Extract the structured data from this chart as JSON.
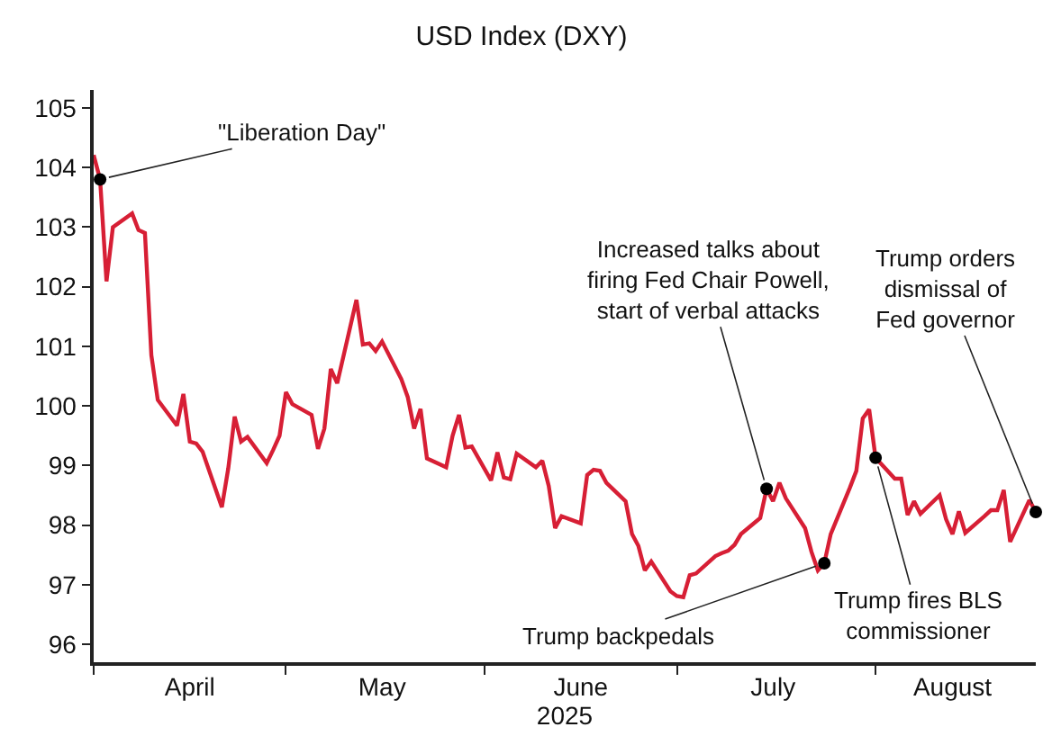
{
  "chart_data": {
    "type": "line",
    "title": "USD Index (DXY)",
    "xlabel": "2025",
    "x": [
      "2025-04-01",
      "2025-04-02",
      "2025-04-03",
      "2025-04-04",
      "2025-04-07",
      "2025-04-08",
      "2025-04-09",
      "2025-04-10",
      "2025-04-11",
      "2025-04-14",
      "2025-04-15",
      "2025-04-16",
      "2025-04-17",
      "2025-04-18",
      "2025-04-21",
      "2025-04-22",
      "2025-04-23",
      "2025-04-24",
      "2025-04-25",
      "2025-04-28",
      "2025-04-29",
      "2025-04-30",
      "2025-05-01",
      "2025-05-02",
      "2025-05-05",
      "2025-05-06",
      "2025-05-07",
      "2025-05-08",
      "2025-05-09",
      "2025-05-12",
      "2025-05-13",
      "2025-05-14",
      "2025-05-15",
      "2025-05-16",
      "2025-05-19",
      "2025-05-20",
      "2025-05-21",
      "2025-05-22",
      "2025-05-23",
      "2025-05-26",
      "2025-05-27",
      "2025-05-28",
      "2025-05-29",
      "2025-05-30",
      "2025-06-02",
      "2025-06-03",
      "2025-06-04",
      "2025-06-05",
      "2025-06-06",
      "2025-06-09",
      "2025-06-10",
      "2025-06-11",
      "2025-06-12",
      "2025-06-13",
      "2025-06-16",
      "2025-06-17",
      "2025-06-18",
      "2025-06-19",
      "2025-06-20",
      "2025-06-23",
      "2025-06-24",
      "2025-06-25",
      "2025-06-26",
      "2025-06-27",
      "2025-06-30",
      "2025-07-01",
      "2025-07-02",
      "2025-07-03",
      "2025-07-04",
      "2025-07-07",
      "2025-07-08",
      "2025-07-09",
      "2025-07-10",
      "2025-07-11",
      "2025-07-14",
      "2025-07-15",
      "2025-07-16",
      "2025-07-17",
      "2025-07-18",
      "2025-07-21",
      "2025-07-22",
      "2025-07-23",
      "2025-07-24",
      "2025-07-25",
      "2025-07-28",
      "2025-07-29",
      "2025-07-30",
      "2025-07-31",
      "2025-08-01",
      "2025-08-04",
      "2025-08-05",
      "2025-08-06",
      "2025-08-07",
      "2025-08-08",
      "2025-08-11",
      "2025-08-12",
      "2025-08-13",
      "2025-08-14",
      "2025-08-15",
      "2025-08-18",
      "2025-08-19",
      "2025-08-20",
      "2025-08-21",
      "2025-08-22",
      "2025-08-25",
      "2025-08-26"
    ],
    "series": [
      {
        "color": "#d71f35",
        "values": [
          104.21,
          103.8,
          102.09,
          103.0,
          103.23,
          102.95,
          102.9,
          100.85,
          100.1,
          99.67,
          100.2,
          99.4,
          99.37,
          99.23,
          98.3,
          98.95,
          99.82,
          99.4,
          99.48,
          99.04,
          99.26,
          99.5,
          100.23,
          100.03,
          99.85,
          99.28,
          99.62,
          100.62,
          100.38,
          101.78,
          101.03,
          101.05,
          100.92,
          101.08,
          100.45,
          100.15,
          99.62,
          99.95,
          99.12,
          98.97,
          99.5,
          99.85,
          99.3,
          99.32,
          98.75,
          99.22,
          98.8,
          98.77,
          99.2,
          98.97,
          99.08,
          98.66,
          97.95,
          98.15,
          98.03,
          98.84,
          98.93,
          98.91,
          98.71,
          98.4,
          97.85,
          97.65,
          97.24,
          97.39,
          96.89,
          96.81,
          96.79,
          97.16,
          97.19,
          97.48,
          97.53,
          97.57,
          97.67,
          97.85,
          98.12,
          98.61,
          98.4,
          98.71,
          98.45,
          97.95,
          97.55,
          97.24,
          97.36,
          97.85,
          98.63,
          98.91,
          99.79,
          99.94,
          99.13,
          98.78,
          98.78,
          98.17,
          98.4,
          98.19,
          98.5,
          98.1,
          97.85,
          98.23,
          97.87,
          98.15,
          98.25,
          98.25,
          98.59,
          97.72,
          98.42,
          98.22
        ]
      }
    ],
    "xlim": [
      "2025-04-01",
      "2025-08-26"
    ],
    "xticks": [
      {
        "value": "2025-04-01",
        "label": null
      },
      {
        "value": "2025-05-01",
        "label": null
      },
      {
        "value": "2025-06-01",
        "label": null
      },
      {
        "value": "2025-07-01",
        "label": null
      },
      {
        "value": "2025-08-01",
        "label": null
      },
      {
        "value": "2025-04-16",
        "label": "April"
      },
      {
        "value": "2025-05-16",
        "label": "May"
      },
      {
        "value": "2025-06-16",
        "label": "June"
      },
      {
        "value": "2025-07-16",
        "label": "July"
      },
      {
        "value": "2025-08-13",
        "label": "August"
      }
    ],
    "ylim": [
      95.7,
      105.3
    ],
    "yticks": [
      96,
      97,
      98,
      99,
      100,
      101,
      102,
      103,
      104,
      105
    ],
    "annotations": [
      {
        "text": "\"Liberation Day\"",
        "x": "2025-04-02",
        "y": 103.8
      },
      {
        "text": "Increased talks about\nfiring Fed Chair Powell,\nstart of verbal attacks",
        "x": "2025-07-15",
        "y": 98.61
      },
      {
        "text": "Trump backpedals",
        "x": "2025-07-24",
        "y": 97.36
      },
      {
        "text": "Trump fires BLS\ncommissioner",
        "x": "2025-08-01",
        "y": 99.13
      },
      {
        "text": "Trump orders\ndismissal of\nFed governor",
        "x": "2025-08-26",
        "y": 98.22
      }
    ]
  }
}
